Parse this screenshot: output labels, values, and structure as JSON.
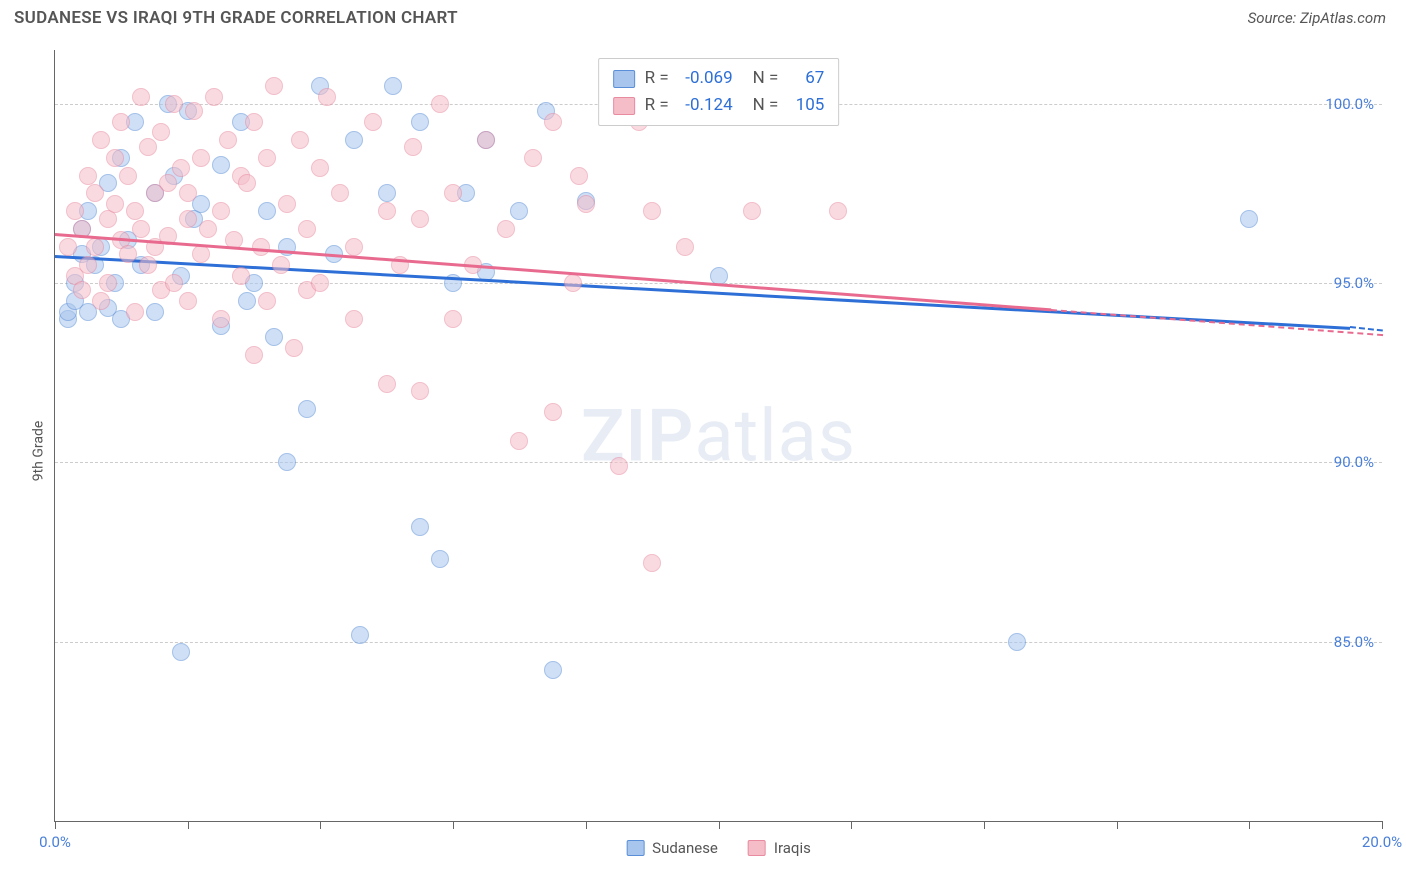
{
  "title": "SUDANESE VS IRAQI 9TH GRADE CORRELATION CHART",
  "source": "Source: ZipAtlas.com",
  "ylabel": "9th Grade",
  "watermark_text": "ZIPatlas",
  "chart": {
    "type": "scatter",
    "xlim": [
      0,
      20
    ],
    "ylim": [
      80,
      101.5
    ],
    "y_ticks": [
      85,
      90,
      95,
      100
    ],
    "y_tick_labels": [
      "85.0%",
      "90.0%",
      "95.0%",
      "100.0%"
    ],
    "x_ticks": [
      0,
      2,
      4,
      6,
      8,
      10,
      12,
      14,
      16,
      18,
      20
    ],
    "x_tick_labels": {
      "0": "0.0%",
      "20": "20.0%"
    },
    "grid_color": "#cccccc",
    "axis_color": "#666666",
    "tick_label_color": "#4a7fd8",
    "background_color": "#ffffff",
    "point_radius": 9,
    "point_opacity": 0.55,
    "series": [
      {
        "name": "Sudanese",
        "color_fill": "#a8c5ed",
        "color_stroke": "#5a8fd8",
        "trend_color": "#2d6fd6",
        "trend": {
          "x1": 0,
          "y1": 95.8,
          "x2_solid": 19.5,
          "y2_solid": 93.8,
          "x2_dash": 20,
          "y2_dash": 93.7
        },
        "R": "-0.069",
        "N": "67",
        "points": [
          [
            0.2,
            94.0
          ],
          [
            0.2,
            94.2
          ],
          [
            0.3,
            94.5
          ],
          [
            0.3,
            95.0
          ],
          [
            0.4,
            95.8
          ],
          [
            0.4,
            96.5
          ],
          [
            0.5,
            94.2
          ],
          [
            0.5,
            97.0
          ],
          [
            0.6,
            95.5
          ],
          [
            0.7,
            96.0
          ],
          [
            0.8,
            94.3
          ],
          [
            0.8,
            97.8
          ],
          [
            0.9,
            95.0
          ],
          [
            1.0,
            98.5
          ],
          [
            1.0,
            94.0
          ],
          [
            1.1,
            96.2
          ],
          [
            1.2,
            99.5
          ],
          [
            1.3,
            95.5
          ],
          [
            1.5,
            97.5
          ],
          [
            1.5,
            94.2
          ],
          [
            1.7,
            100.0
          ],
          [
            1.8,
            98.0
          ],
          [
            1.9,
            84.7
          ],
          [
            1.9,
            95.2
          ],
          [
            2.0,
            99.8
          ],
          [
            2.1,
            96.8
          ],
          [
            2.2,
            97.2
          ],
          [
            2.5,
            98.3
          ],
          [
            2.5,
            93.8
          ],
          [
            2.8,
            99.5
          ],
          [
            2.9,
            94.5
          ],
          [
            3.0,
            95.0
          ],
          [
            3.2,
            97.0
          ],
          [
            3.3,
            93.5
          ],
          [
            3.5,
            96.0
          ],
          [
            3.5,
            90.0
          ],
          [
            3.8,
            91.5
          ],
          [
            4.0,
            100.5
          ],
          [
            4.2,
            95.8
          ],
          [
            4.5,
            99.0
          ],
          [
            4.6,
            85.2
          ],
          [
            5.0,
            97.5
          ],
          [
            5.1,
            100.5
          ],
          [
            5.5,
            99.5
          ],
          [
            5.5,
            88.2
          ],
          [
            5.8,
            87.3
          ],
          [
            6.0,
            95.0
          ],
          [
            6.2,
            97.5
          ],
          [
            6.5,
            99.0
          ],
          [
            6.5,
            95.3
          ],
          [
            7.0,
            97.0
          ],
          [
            7.4,
            99.8
          ],
          [
            7.5,
            84.2
          ],
          [
            8.0,
            97.3
          ],
          [
            10.0,
            95.2
          ],
          [
            14.5,
            85.0
          ],
          [
            18.0,
            96.8
          ]
        ]
      },
      {
        "name": "Iraqis",
        "color_fill": "#f5bdc8",
        "color_stroke": "#e88aa0",
        "trend_color": "#e86b8f",
        "trend": {
          "x1": 0,
          "y1": 96.4,
          "x2_solid": 15.0,
          "y2_solid": 94.3,
          "x2_dash": 20,
          "y2_dash": 93.6
        },
        "R": "-0.124",
        "N": "105",
        "points": [
          [
            0.2,
            96.0
          ],
          [
            0.3,
            95.2
          ],
          [
            0.3,
            97.0
          ],
          [
            0.4,
            96.5
          ],
          [
            0.4,
            94.8
          ],
          [
            0.5,
            98.0
          ],
          [
            0.5,
            95.5
          ],
          [
            0.6,
            97.5
          ],
          [
            0.6,
            96.0
          ],
          [
            0.7,
            99.0
          ],
          [
            0.7,
            94.5
          ],
          [
            0.8,
            96.8
          ],
          [
            0.8,
            95.0
          ],
          [
            0.9,
            98.5
          ],
          [
            0.9,
            97.2
          ],
          [
            1.0,
            96.2
          ],
          [
            1.0,
            99.5
          ],
          [
            1.1,
            95.8
          ],
          [
            1.1,
            98.0
          ],
          [
            1.2,
            97.0
          ],
          [
            1.2,
            94.2
          ],
          [
            1.3,
            96.5
          ],
          [
            1.3,
            100.2
          ],
          [
            1.4,
            95.5
          ],
          [
            1.4,
            98.8
          ],
          [
            1.5,
            97.5
          ],
          [
            1.5,
            96.0
          ],
          [
            1.6,
            99.2
          ],
          [
            1.6,
            94.8
          ],
          [
            1.7,
            97.8
          ],
          [
            1.7,
            96.3
          ],
          [
            1.8,
            95.0
          ],
          [
            1.8,
            100.0
          ],
          [
            1.9,
            98.2
          ],
          [
            2.0,
            96.8
          ],
          [
            2.0,
            97.5
          ],
          [
            2.0,
            94.5
          ],
          [
            2.1,
            99.8
          ],
          [
            2.2,
            95.8
          ],
          [
            2.2,
            98.5
          ],
          [
            2.3,
            96.5
          ],
          [
            2.4,
            100.2
          ],
          [
            2.5,
            97.0
          ],
          [
            2.5,
            94.0
          ],
          [
            2.6,
            99.0
          ],
          [
            2.7,
            96.2
          ],
          [
            2.8,
            98.0
          ],
          [
            2.8,
            95.2
          ],
          [
            2.9,
            97.8
          ],
          [
            3.0,
            99.5
          ],
          [
            3.0,
            93.0
          ],
          [
            3.1,
            96.0
          ],
          [
            3.2,
            94.5
          ],
          [
            3.2,
            98.5
          ],
          [
            3.3,
            100.5
          ],
          [
            3.4,
            95.5
          ],
          [
            3.5,
            97.2
          ],
          [
            3.6,
            93.2
          ],
          [
            3.7,
            99.0
          ],
          [
            3.8,
            96.5
          ],
          [
            3.8,
            94.8
          ],
          [
            4.0,
            98.2
          ],
          [
            4.0,
            95.0
          ],
          [
            4.1,
            100.2
          ],
          [
            4.3,
            97.5
          ],
          [
            4.5,
            96.0
          ],
          [
            4.5,
            94.0
          ],
          [
            4.8,
            99.5
          ],
          [
            5.0,
            97.0
          ],
          [
            5.0,
            92.2
          ],
          [
            5.2,
            95.5
          ],
          [
            5.4,
            98.8
          ],
          [
            5.5,
            96.8
          ],
          [
            5.5,
            92.0
          ],
          [
            5.8,
            100.0
          ],
          [
            6.0,
            97.5
          ],
          [
            6.0,
            94.0
          ],
          [
            6.3,
            95.5
          ],
          [
            6.5,
            99.0
          ],
          [
            6.8,
            96.5
          ],
          [
            7.0,
            90.6
          ],
          [
            7.2,
            98.5
          ],
          [
            7.5,
            91.4
          ],
          [
            7.5,
            99.5
          ],
          [
            7.8,
            95.0
          ],
          [
            7.9,
            98.0
          ],
          [
            8.0,
            97.2
          ],
          [
            8.5,
            89.9
          ],
          [
            8.8,
            99.5
          ],
          [
            9.0,
            87.2
          ],
          [
            9.0,
            97.0
          ],
          [
            9.5,
            96.0
          ],
          [
            10.5,
            97.0
          ],
          [
            11.8,
            97.0
          ]
        ]
      }
    ]
  },
  "legend_bottom": [
    {
      "label": "Sudanese",
      "fill": "#a8c5ed",
      "stroke": "#5a8fd8"
    },
    {
      "label": "Iraqis",
      "fill": "#f5bdc8",
      "stroke": "#e88aa0"
    }
  ]
}
